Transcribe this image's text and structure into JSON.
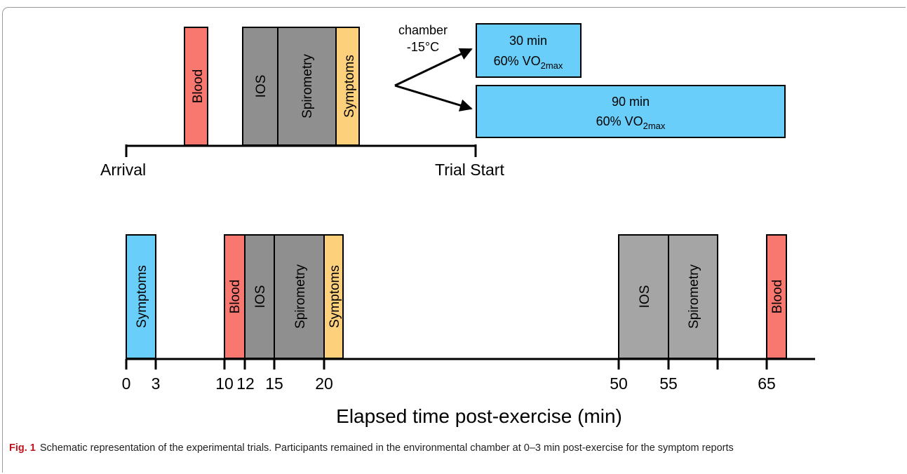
{
  "colors": {
    "blood": "#f8776f",
    "gray": "#8f8f8f",
    "gray_light": "#a5a5a5",
    "symptoms_yellow": "#fdd07c",
    "symptoms_blue": "#69cffa",
    "exercise_blue": "#69cffa",
    "caption_label": "#c0121c"
  },
  "top": {
    "blocks": {
      "blood": "Blood",
      "ios": "IOS",
      "spirometry": "Spirometry",
      "symptoms": "Symptoms"
    },
    "chamber": {
      "line1": "chamber",
      "line2": "-15°C"
    },
    "trial_short": {
      "duration": "30 min",
      "intensity_prefix": "60% VO",
      "intensity_sub": "2max"
    },
    "trial_long": {
      "duration": "90 min",
      "intensity_prefix": "60% VO",
      "intensity_sub": "2max"
    },
    "arrival_label": "Arrival",
    "trial_start_label": "Trial Start"
  },
  "bottom": {
    "blocks": {
      "symptoms_first": "Symptoms",
      "blood_first": "Blood",
      "ios_first": "IOS",
      "spirometry_first": "Spirometry",
      "symptoms_second": "Symptoms",
      "ios_second": "IOS",
      "spirometry_second": "Spirometry",
      "blood_last": "Blood"
    },
    "ticks": [
      "0",
      "3",
      "10",
      "12",
      "15",
      "20",
      "50",
      "55",
      "65"
    ],
    "axis_title": "Elapsed time post-exercise (min)"
  },
  "caption": {
    "label": "Fig. 1",
    "text": "Schematic representation of the experimental trials. Participants remained in the environmental chamber at 0–3 min post-exercise for the symptom reports"
  }
}
